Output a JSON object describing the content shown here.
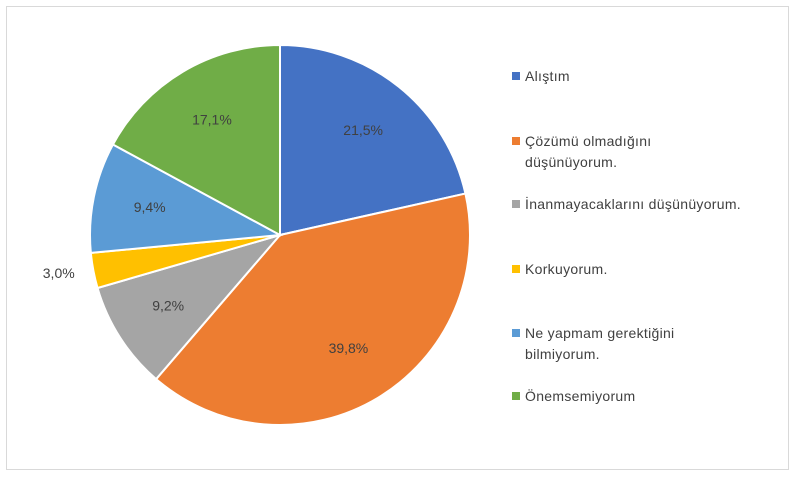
{
  "chart_data": {
    "type": "pie",
    "categories": [
      "Alıştım",
      "Çözümü olmadığını düşünüyorum.",
      "İnanmayacaklarını düşünüyorum.",
      "Korkuyorum.",
      "Ne yapmam gerektiğini bilmiyorum.",
      "Önemsemiyorum"
    ],
    "values": [
      21.5,
      39.8,
      9.2,
      3.0,
      9.4,
      17.1
    ],
    "value_labels": [
      "21,5%",
      "39,8%",
      "9,2%",
      "3,0%",
      "9,4%",
      "17,1%"
    ],
    "colors": [
      "#4472c4",
      "#ed7d31",
      "#a5a5a5",
      "#ffc000",
      "#5b9bd5",
      "#70ad47"
    ],
    "legend": "right"
  }
}
